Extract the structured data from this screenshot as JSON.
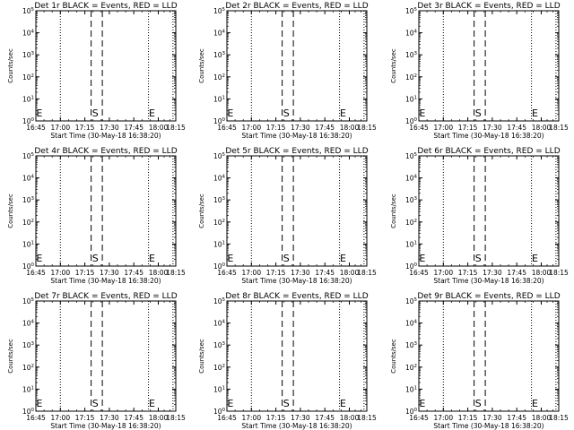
{
  "chart_data": [
    {
      "type": "line",
      "title": "Det 1r BLACK = Events, RED = LLD",
      "xlabel": "Start Time (30-May-18 16:38:20)",
      "ylabel": "Counts/sec",
      "xticks": [
        "16:45",
        "17:00",
        "17:15",
        "17:30",
        "17:45",
        "18:00",
        "18:15"
      ],
      "yscale": "log",
      "yticks": [
        "10^0",
        "10^1",
        "10^2",
        "10^3",
        "10^4",
        "10^5"
      ],
      "ylim": [
        1,
        100000
      ],
      "series": [],
      "markers": [
        "E",
        "S",
        "E"
      ],
      "grid": false
    },
    {
      "type": "line",
      "title": "Det 2r BLACK = Events, RED = LLD",
      "xlabel": "Start Time (30-May-18 16:38:20)",
      "ylabel": "Counts/sec",
      "xticks": [
        "16:45",
        "17:00",
        "17:15",
        "17:30",
        "17:45",
        "18:00",
        "18:15"
      ],
      "yscale": "log",
      "yticks": [
        "10^0",
        "10^1",
        "10^2",
        "10^3",
        "10^4",
        "10^5"
      ],
      "ylim": [
        1,
        100000
      ],
      "series": [],
      "markers": [
        "E",
        "S",
        "E"
      ],
      "grid": false
    },
    {
      "type": "line",
      "title": "Det 3r BLACK = Events, RED = LLD",
      "xlabel": "Start Time (30-May-18 16:38:20)",
      "ylabel": "Counts/sec",
      "xticks": [
        "16:45",
        "17:00",
        "17:15",
        "17:30",
        "17:45",
        "18:00",
        "18:15"
      ],
      "yscale": "log",
      "yticks": [
        "10^0",
        "10^1",
        "10^2",
        "10^3",
        "10^4",
        "10^5"
      ],
      "ylim": [
        1,
        100000
      ],
      "series": [],
      "markers": [
        "E",
        "S",
        "E"
      ],
      "grid": false
    },
    {
      "type": "line",
      "title": "Det 4r BLACK = Events, RED = LLD",
      "xlabel": "Start Time (30-May-18 16:38:20)",
      "ylabel": "Counts/sec",
      "xticks": [
        "16:45",
        "17:00",
        "17:15",
        "17:30",
        "17:45",
        "18:00",
        "18:15"
      ],
      "yscale": "log",
      "yticks": [
        "10^0",
        "10^1",
        "10^2",
        "10^3",
        "10^4",
        "10^5"
      ],
      "ylim": [
        1,
        100000
      ],
      "series": [],
      "markers": [
        "E",
        "S",
        "E"
      ],
      "grid": false
    },
    {
      "type": "line",
      "title": "Det 5r BLACK = Events, RED = LLD",
      "xlabel": "Start Time (30-May-18 16:38:20)",
      "ylabel": "Counts/sec",
      "xticks": [
        "16:45",
        "17:00",
        "17:15",
        "17:30",
        "17:45",
        "18:00",
        "18:15"
      ],
      "yscale": "log",
      "yticks": [
        "10^0",
        "10^1",
        "10^2",
        "10^3",
        "10^4",
        "10^5"
      ],
      "ylim": [
        1,
        100000
      ],
      "series": [],
      "markers": [
        "E",
        "S",
        "E"
      ],
      "grid": false
    },
    {
      "type": "line",
      "title": "Det 6r BLACK = Events, RED = LLD",
      "xlabel": "Start Time (30-May-18 16:38:20)",
      "ylabel": "Counts/sec",
      "xticks": [
        "16:45",
        "17:00",
        "17:15",
        "17:30",
        "17:45",
        "18:00",
        "18:15"
      ],
      "yscale": "log",
      "yticks": [
        "10^0",
        "10^1",
        "10^2",
        "10^3",
        "10^4",
        "10^5"
      ],
      "ylim": [
        1,
        100000
      ],
      "series": [],
      "markers": [
        "E",
        "S",
        "E"
      ],
      "grid": false
    },
    {
      "type": "line",
      "title": "Det 7r BLACK = Events, RED = LLD",
      "xlabel": "Start Time (30-May-18 16:38:20)",
      "ylabel": "Counts/sec",
      "xticks": [
        "16:45",
        "17:00",
        "17:15",
        "17:30",
        "17:45",
        "18:00",
        "18:15"
      ],
      "yscale": "log",
      "yticks": [
        "10^0",
        "10^1",
        "10^2",
        "10^3",
        "10^4",
        "10^5"
      ],
      "ylim": [
        1,
        100000
      ],
      "series": [],
      "markers": [
        "E",
        "S",
        "E"
      ],
      "grid": false
    },
    {
      "type": "line",
      "title": "Det 8r BLACK = Events, RED = LLD",
      "xlabel": "Start Time (30-May-18 16:38:20)",
      "ylabel": "Counts/sec",
      "xticks": [
        "16:45",
        "17:00",
        "17:15",
        "17:30",
        "17:45",
        "18:00",
        "18:15"
      ],
      "yscale": "log",
      "yticks": [
        "10^0",
        "10^1",
        "10^2",
        "10^3",
        "10^4",
        "10^5"
      ],
      "ylim": [
        1,
        100000
      ],
      "series": [],
      "markers": [
        "E",
        "S",
        "E"
      ],
      "grid": false
    },
    {
      "type": "line",
      "title": "Det 9r BLACK = Events, RED = LLD",
      "xlabel": "Start Time (30-May-18 16:38:20)",
      "ylabel": "Counts/sec",
      "xticks": [
        "16:45",
        "17:00",
        "17:15",
        "17:30",
        "17:45",
        "18:00",
        "18:15"
      ],
      "yscale": "log",
      "yticks": [
        "10^0",
        "10^1",
        "10^2",
        "10^3",
        "10^4",
        "10^5"
      ],
      "ylim": [
        1,
        100000
      ],
      "series": [],
      "markers": [
        "E",
        "S",
        "E"
      ],
      "grid": false
    }
  ]
}
